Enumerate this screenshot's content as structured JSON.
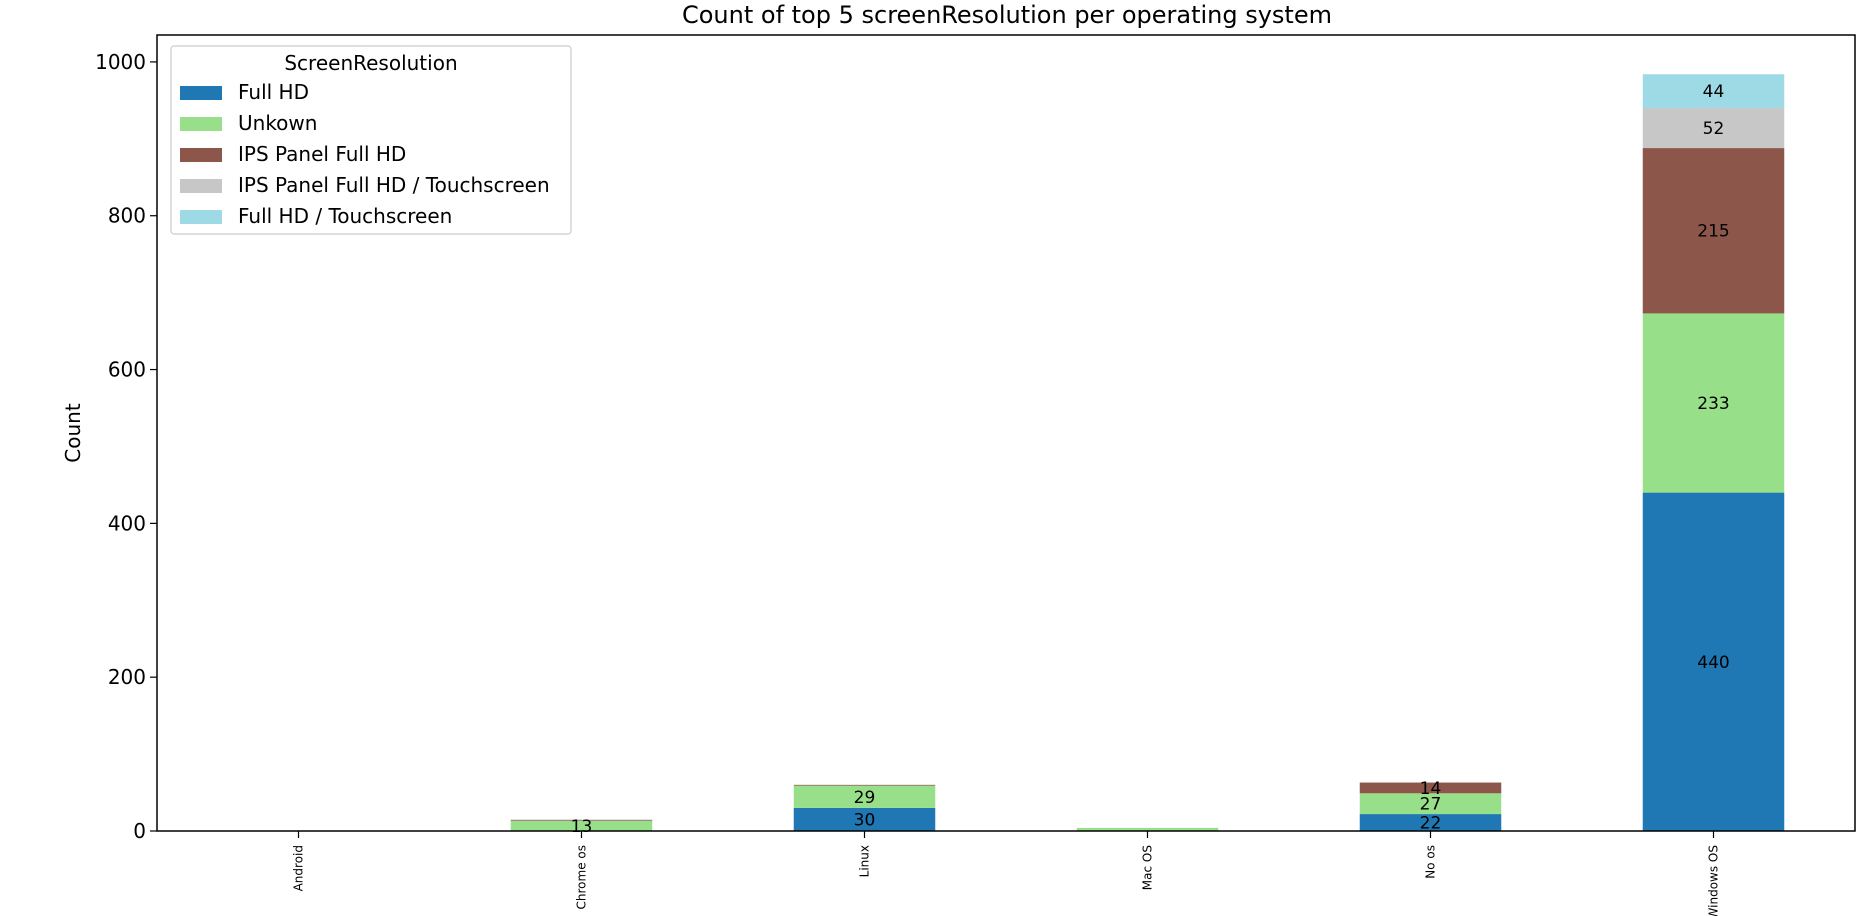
{
  "chart_data": {
    "type": "bar",
    "stacked": true,
    "title": "Count of top 5 screenResolution per operating system",
    "xlabel": "",
    "ylabel": "Count",
    "ylim": [
      0,
      1035
    ],
    "yticks": [
      0,
      200,
      400,
      600,
      800,
      1000
    ],
    "grid": false,
    "legend": {
      "title": "ScreenResolution",
      "placement": "top-left"
    },
    "categories": [
      "Android",
      "Chrome os",
      "Linux",
      "Mac OS",
      "No os",
      "Windows OS"
    ],
    "series": [
      {
        "name": "Full HD",
        "color": "#1f77b4",
        "values": [
          0,
          0,
          30,
          0,
          22,
          440
        ]
      },
      {
        "name": "Unkown",
        "color": "#98df8a",
        "values": [
          0,
          13,
          29,
          4,
          27,
          233
        ]
      },
      {
        "name": "IPS Panel Full HD",
        "color": "#8c564b",
        "values": [
          0,
          1,
          1,
          0,
          14,
          215
        ]
      },
      {
        "name": "IPS Panel Full HD / Touchscreen",
        "color": "#c7c7c7",
        "values": [
          0,
          1,
          0,
          0,
          0,
          52
        ]
      },
      {
        "name": "Full HD / Touchscreen",
        "color": "#9edae5",
        "values": [
          0,
          0,
          0,
          0,
          0,
          44
        ]
      }
    ],
    "bar_labels": [
      {
        "category": "Chrome os",
        "series": "Unkown",
        "text": "13"
      },
      {
        "category": "Linux",
        "series": "Full HD",
        "text": "30"
      },
      {
        "category": "Linux",
        "series": "Unkown",
        "text": "29"
      },
      {
        "category": "No os",
        "series": "Full HD",
        "text": "22"
      },
      {
        "category": "No os",
        "series": "Unkown",
        "text": "27"
      },
      {
        "category": "No os",
        "series": "IPS Panel Full HD",
        "text": "14"
      },
      {
        "category": "Windows OS",
        "series": "Full HD",
        "text": "440"
      },
      {
        "category": "Windows OS",
        "series": "Unkown",
        "text": "233"
      },
      {
        "category": "Windows OS",
        "series": "IPS Panel Full HD",
        "text": "215"
      },
      {
        "category": "Windows OS",
        "series": "IPS Panel Full HD / Touchscreen",
        "text": "52"
      },
      {
        "category": "Windows OS",
        "series": "Full HD / Touchscreen",
        "text": "44"
      }
    ]
  }
}
